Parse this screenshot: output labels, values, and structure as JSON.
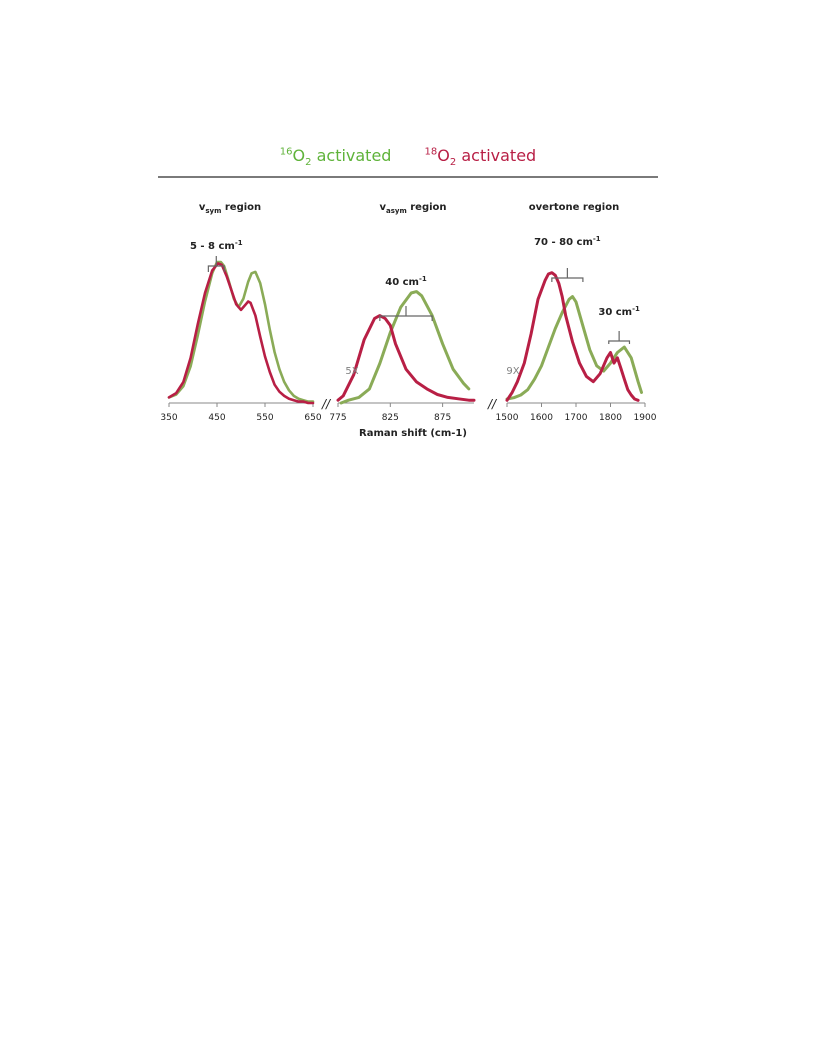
{
  "legend": {
    "series16": {
      "sup": "16",
      "base": "O",
      "sub": "2",
      "rest": " activated",
      "color": "#5fb33a"
    },
    "series18": {
      "sup": "18",
      "base": "O",
      "sub": "2",
      "rest": " activated",
      "color": "#b81f45"
    }
  },
  "colors": {
    "o16_line": "#8aab57",
    "o18_line": "#b81f45",
    "axis": "#888888",
    "text": "#222222",
    "gray": "#808080"
  },
  "chart_data": [
    {
      "type": "line",
      "title": {
        "main": "v",
        "sub": "sym",
        "rest": " region"
      },
      "xlim": [
        350,
        650
      ],
      "xticks": [
        350,
        450,
        550,
        650
      ],
      "ylim": [
        0,
        1.1
      ],
      "annotation": {
        "text": "5 - 8 cm",
        "sup": "-1",
        "x_from": 432,
        "x_to": 465
      },
      "series": [
        {
          "key": "o16",
          "x": [
            350,
            365,
            380,
            395,
            410,
            425,
            440,
            450,
            458,
            465,
            475,
            485,
            495,
            505,
            515,
            522,
            530,
            540,
            550,
            560,
            570,
            580,
            590,
            600,
            610,
            620,
            630,
            640,
            650
          ],
          "y": [
            0.04,
            0.06,
            0.12,
            0.26,
            0.48,
            0.72,
            0.92,
            1.0,
            1.0,
            0.97,
            0.86,
            0.74,
            0.68,
            0.74,
            0.86,
            0.92,
            0.93,
            0.85,
            0.7,
            0.52,
            0.36,
            0.24,
            0.15,
            0.09,
            0.05,
            0.03,
            0.02,
            0.01,
            0.01
          ]
        },
        {
          "key": "o18",
          "x": [
            350,
            365,
            380,
            395,
            410,
            425,
            440,
            452,
            460,
            470,
            480,
            490,
            500,
            510,
            515,
            520,
            530,
            540,
            550,
            560,
            570,
            580,
            590,
            600,
            610,
            620,
            630,
            640,
            650
          ],
          "y": [
            0.04,
            0.07,
            0.15,
            0.32,
            0.56,
            0.78,
            0.94,
            0.99,
            0.98,
            0.9,
            0.8,
            0.7,
            0.66,
            0.7,
            0.72,
            0.71,
            0.62,
            0.47,
            0.33,
            0.22,
            0.13,
            0.08,
            0.05,
            0.03,
            0.02,
            0.01,
            0.01,
            0.0,
            0.0
          ]
        }
      ]
    },
    {
      "type": "line",
      "title": {
        "main": "v",
        "sub": "asym",
        "rest": " region"
      },
      "xlim": [
        775,
        905
      ],
      "xticks": [
        775,
        825,
        875
      ],
      "ylim": [
        0,
        1.1
      ],
      "scale_label": "5X",
      "annotation": {
        "text": "40 cm",
        "sup": "-1",
        "x_from": 815,
        "x_to": 865
      },
      "series": [
        {
          "key": "o16",
          "x": [
            778,
            785,
            795,
            805,
            815,
            825,
            835,
            845,
            850,
            855,
            865,
            875,
            885,
            895,
            900
          ],
          "y": [
            0.0,
            0.02,
            0.04,
            0.1,
            0.28,
            0.5,
            0.68,
            0.78,
            0.79,
            0.76,
            0.62,
            0.42,
            0.24,
            0.14,
            0.1
          ]
        },
        {
          "key": "o18",
          "x": [
            775,
            780,
            790,
            800,
            810,
            815,
            820,
            825,
            830,
            840,
            850,
            860,
            870,
            880,
            890,
            900,
            905
          ],
          "y": [
            0.02,
            0.05,
            0.2,
            0.45,
            0.6,
            0.62,
            0.6,
            0.55,
            0.42,
            0.24,
            0.15,
            0.1,
            0.06,
            0.04,
            0.03,
            0.02,
            0.02
          ]
        }
      ]
    },
    {
      "type": "line",
      "title": {
        "main": "overtone region"
      },
      "xlim": [
        1500,
        1900
      ],
      "xticks": [
        1500,
        1600,
        1700,
        1800,
        1900
      ],
      "ylim": [
        0,
        1.1
      ],
      "scale_label": "9X",
      "annotations": [
        {
          "text": "70 - 80 cm",
          "sup": "-1",
          "x_from": 1630,
          "x_to": 1720
        },
        {
          "text": "30 cm",
          "sup": "-1",
          "x_from": 1795,
          "x_to": 1855
        }
      ],
      "series": [
        {
          "key": "o16",
          "x": [
            1500,
            1520,
            1540,
            1560,
            1580,
            1600,
            1620,
            1640,
            1660,
            1680,
            1690,
            1700,
            1720,
            1740,
            1760,
            1780,
            1800,
            1820,
            1840,
            1860,
            1880,
            1890
          ],
          "y": [
            0.03,
            0.04,
            0.06,
            0.1,
            0.18,
            0.28,
            0.42,
            0.56,
            0.68,
            0.78,
            0.8,
            0.76,
            0.58,
            0.4,
            0.28,
            0.24,
            0.3,
            0.38,
            0.42,
            0.34,
            0.16,
            0.08
          ]
        },
        {
          "key": "o18",
          "x": [
            1500,
            1515,
            1530,
            1550,
            1570,
            1590,
            1610,
            1620,
            1630,
            1640,
            1650,
            1660,
            1670,
            1690,
            1710,
            1730,
            1750,
            1770,
            1790,
            1800,
            1810,
            1820,
            1830,
            1840,
            1850,
            1860,
            1870,
            1880
          ],
          "y": [
            0.02,
            0.08,
            0.16,
            0.3,
            0.52,
            0.78,
            0.92,
            0.97,
            0.98,
            0.96,
            0.9,
            0.8,
            0.66,
            0.46,
            0.3,
            0.2,
            0.16,
            0.22,
            0.34,
            0.38,
            0.3,
            0.34,
            0.26,
            0.18,
            0.1,
            0.06,
            0.03,
            0.02
          ]
        }
      ]
    }
  ],
  "xlabel": "Raman shift (cm-1)",
  "break_marks": [
    "//",
    "//"
  ]
}
